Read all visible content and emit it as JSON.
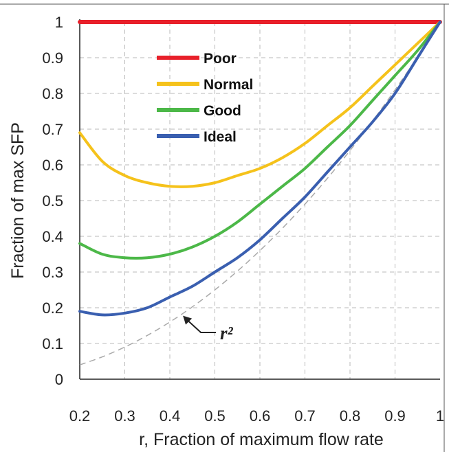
{
  "chart_data": {
    "type": "line",
    "title": "",
    "xlabel": "r, Fraction of maximum flow rate",
    "ylabel": "Fraction of max SFP",
    "xlim": [
      0.2,
      1.0
    ],
    "ylim": [
      0,
      1.0
    ],
    "x_ticks": [
      "0.2",
      "0.3",
      "0.4",
      "0.5",
      "0.6",
      "0.7",
      "0.8",
      "0.9",
      "1"
    ],
    "y_ticks": [
      "0",
      "0.1",
      "0.2",
      "0.3",
      "0.4",
      "0.5",
      "0.6",
      "0.7",
      "0.8",
      "0.9",
      "1"
    ],
    "grid": true,
    "legend_position": "top-left",
    "x": [
      0.2,
      0.25,
      0.3,
      0.35,
      0.4,
      0.45,
      0.5,
      0.55,
      0.6,
      0.65,
      0.7,
      0.75,
      0.8,
      0.85,
      0.9,
      0.95,
      1.0
    ],
    "series": [
      {
        "name": "Poor",
        "color": "#e8202a",
        "values": [
          1.0,
          1.0,
          1.0,
          1.0,
          1.0,
          1.0,
          1.0,
          1.0,
          1.0,
          1.0,
          1.0,
          1.0,
          1.0,
          1.0,
          1.0,
          1.0,
          1.0
        ]
      },
      {
        "name": "Normal",
        "color": "#f5c21b",
        "values": [
          0.69,
          0.61,
          0.57,
          0.55,
          0.54,
          0.54,
          0.55,
          0.57,
          0.59,
          0.62,
          0.66,
          0.71,
          0.76,
          0.82,
          0.88,
          0.94,
          1.0
        ]
      },
      {
        "name": "Good",
        "color": "#4cb848",
        "values": [
          0.38,
          0.35,
          0.34,
          0.34,
          0.35,
          0.37,
          0.4,
          0.44,
          0.49,
          0.54,
          0.59,
          0.65,
          0.71,
          0.78,
          0.85,
          0.92,
          1.0
        ]
      },
      {
        "name": "Ideal",
        "color": "#3a5fb0",
        "values": [
          0.19,
          0.18,
          0.185,
          0.2,
          0.23,
          0.26,
          0.3,
          0.34,
          0.39,
          0.45,
          0.51,
          0.58,
          0.65,
          0.72,
          0.8,
          0.9,
          1.0
        ]
      }
    ],
    "reference": {
      "color": "#aaaaaa",
      "values": [
        0.04,
        0.0625,
        0.09,
        0.1225,
        0.16,
        0.2025,
        0.25,
        0.3025,
        0.36,
        0.4225,
        0.49,
        0.5625,
        0.64,
        0.7225,
        0.81,
        0.9025,
        1.0
      ]
    },
    "annotation": {
      "label": "r²",
      "points_to": [
        0.42,
        0.17
      ]
    }
  }
}
